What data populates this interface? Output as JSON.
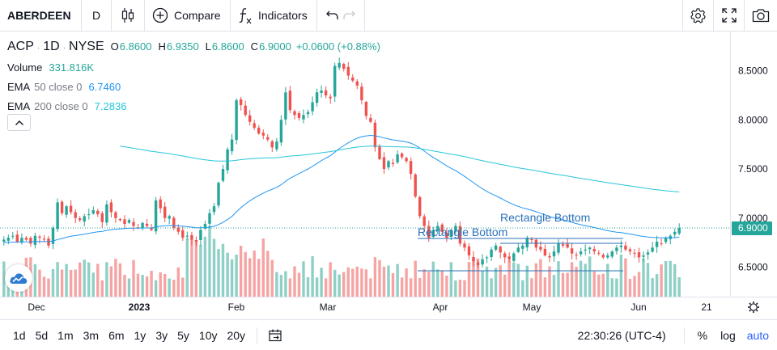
{
  "toolbar": {
    "symbol": "ABERDEEN",
    "interval": "D",
    "compare_label": "Compare",
    "indicators_label": "Indicators"
  },
  "legend": {
    "ticker": "ACP",
    "interval": "1D",
    "exchange": "NYSE",
    "open_key": "O",
    "open": "6.8600",
    "high_key": "H",
    "high": "6.9350",
    "low_key": "L",
    "low": "6.8600",
    "close_key": "C",
    "close": "6.9000",
    "change": "+0.0600 (+0.88%)",
    "volume_label": "Volume",
    "volume": "331.816K",
    "ema50_label": "EMA",
    "ema50_params": "50 close 0",
    "ema50_value": "6.7460",
    "ema200_label": "EMA",
    "ema200_params": "200 close 0",
    "ema200_value": "7.2836"
  },
  "annotations": {
    "rect1_label": "Rectangle Bottom",
    "rect2_label": "Rectangle Bottom"
  },
  "chart_data": {
    "type": "candlestick",
    "price_axis_ticks": [
      "8.5000",
      "8.0000",
      "7.5000",
      "7.0000",
      "6.5000"
    ],
    "price_axis_values": [
      8.5,
      8.0,
      7.5,
      7.0,
      6.5
    ],
    "last_price_label": "6.9000",
    "last_price": 6.9,
    "ylim": [
      6.2,
      8.9
    ],
    "time_axis_labels": [
      "Dec",
      "2023",
      "Feb",
      "Mar",
      "Apr",
      "May",
      "Jun",
      "21"
    ],
    "colors": {
      "up": "#26a69a",
      "down": "#ef5350",
      "ema50": "#2196f3",
      "ema200": "#26c6da",
      "volume_up": "#8ecfc6",
      "volume_down": "#f6a4a3"
    },
    "closes": [
      6.78,
      6.8,
      6.82,
      6.76,
      6.8,
      6.78,
      6.74,
      6.82,
      6.8,
      6.78,
      6.72,
      6.9,
      7.16,
      7.05,
      7.12,
      7.06,
      7.0,
      6.98,
      7.02,
      7.04,
      7.08,
      7.04,
      6.96,
      7.14,
      7.06,
      7.0,
      6.98,
      6.94,
      6.98,
      6.92,
      6.9,
      6.95,
      6.92,
      6.88,
      7.18,
      7.1,
      7.0,
      7.02,
      6.9,
      6.86,
      6.8,
      6.82,
      6.78,
      6.76,
      6.88,
      6.94,
      7.05,
      7.12,
      7.36,
      7.5,
      7.7,
      7.8,
      8.2,
      8.15,
      8.05,
      7.98,
      7.92,
      7.86,
      7.84,
      7.8,
      7.72,
      7.78,
      8.0,
      8.28,
      8.1,
      8.05,
      8.02,
      8.05,
      8.08,
      8.18,
      8.28,
      8.3,
      8.25,
      8.22,
      8.55,
      8.58,
      8.52,
      8.45,
      8.4,
      8.35,
      8.2,
      8.04,
      7.98,
      7.72,
      7.6,
      7.5,
      7.58,
      7.55,
      7.65,
      7.62,
      7.58,
      7.45,
      7.22,
      7.02,
      6.92,
      6.8,
      6.88,
      6.92,
      6.86,
      6.8,
      6.88,
      6.92,
      6.74,
      6.7,
      6.62,
      6.56,
      6.52,
      6.58,
      6.6,
      6.68,
      6.72,
      6.65,
      6.6,
      6.58,
      6.64,
      6.7,
      6.72,
      6.8,
      6.78,
      6.7,
      6.68,
      6.62,
      6.6,
      6.66,
      6.74,
      6.72,
      6.7,
      6.64,
      6.62,
      6.66,
      6.68,
      6.7,
      6.66,
      6.64,
      6.6,
      6.62,
      6.66,
      6.7,
      6.72,
      6.68,
      6.66,
      6.64,
      6.6,
      6.62,
      6.65,
      6.7,
      6.76,
      6.74,
      6.8,
      6.82,
      6.86,
      6.9
    ]
  },
  "bottombar": {
    "ranges": [
      "1d",
      "5d",
      "1m",
      "3m",
      "6m",
      "1y",
      "3y",
      "5y",
      "10y",
      "20y"
    ],
    "clock": "22:30:26 (UTC-4)",
    "percent_label": "%",
    "log_label": "log",
    "auto_label": "auto"
  }
}
